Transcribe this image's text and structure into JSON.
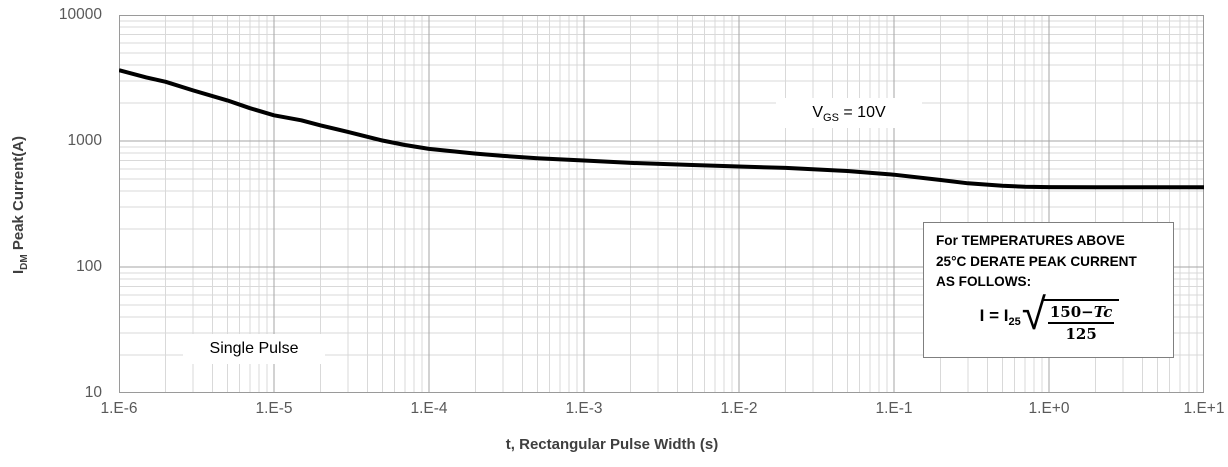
{
  "chart_data": {
    "type": "line",
    "title": "",
    "xlabel": "t, Rectangular Pulse Width (s)",
    "ylabel": "IDM Peak Current(A)",
    "ylabel_parts": {
      "base": "I",
      "sub": "DM",
      "rest": " Peak Current(A)"
    },
    "x_scale": "log",
    "y_scale": "log",
    "xlim": [
      1e-06,
      10
    ],
    "ylim": [
      10,
      10000
    ],
    "grid": "log major+minor, both axes",
    "legend_position": "none",
    "x_tick_labels": [
      "1.E-6",
      "1.E-5",
      "1.E-4",
      "1.E-3",
      "1.E-2",
      "1.E-1",
      "1.E+0",
      "1.E+1"
    ],
    "y_tick_labels": [
      "10000",
      "1000",
      "100",
      "10"
    ],
    "series": [
      {
        "name": "Single Pulse, VGS = 10V",
        "color": "#000000",
        "line_width": 4,
        "x": [
          1e-06,
          1.5e-06,
          2e-06,
          3e-06,
          5e-06,
          7e-06,
          1e-05,
          1.5e-05,
          2e-05,
          3e-05,
          5e-05,
          7e-05,
          0.0001,
          0.0002,
          0.0003,
          0.0005,
          0.001,
          0.002,
          0.005,
          0.01,
          0.02,
          0.05,
          0.1,
          0.2,
          0.3,
          0.5,
          0.7,
          1,
          2,
          5,
          10
        ],
        "y": [
          3650,
          3200,
          2950,
          2520,
          2100,
          1820,
          1600,
          1460,
          1330,
          1180,
          1010,
          930,
          865,
          795,
          762,
          730,
          700,
          670,
          645,
          628,
          612,
          578,
          540,
          490,
          462,
          441,
          434,
          431,
          430,
          430,
          430
        ]
      }
    ],
    "annotations": {
      "curve_label": "Single Pulse",
      "condition": {
        "base": "V",
        "sub": "GS",
        "rest": " = 10V"
      },
      "derating_note": {
        "line1": "For TEMPERATURES ABOVE",
        "line2": "25°C DERATE PEAK CURRENT",
        "line3": "AS FOLLOWS:",
        "formula": {
          "lhs": "I = I",
          "sub": "25",
          "radical": "√",
          "num_const": "150−",
          "num_var": "Tc",
          "den": "125"
        }
      }
    }
  }
}
